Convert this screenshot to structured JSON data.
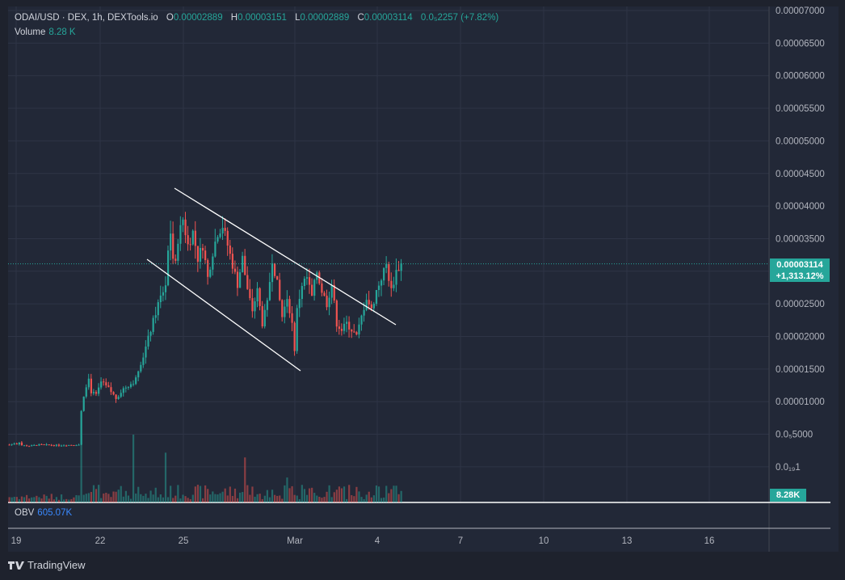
{
  "legend": {
    "symbol": "ODAI/USD · DEX, 1h, DEXTools.io",
    "open_key": "O",
    "open": "0.00002889",
    "high_key": "H",
    "high": "0.00003151",
    "low_key": "L",
    "low": "0.00002889",
    "close_key": "C",
    "close": "0.00003114",
    "change": "0.0₅2257 (+7.82%)"
  },
  "volume": {
    "label": "Volume",
    "value": "8.28 K",
    "axis_badge": "8.28K"
  },
  "obv": {
    "label": "OBV",
    "value": "605.07K"
  },
  "last_price": {
    "value": "0.00003114",
    "change_pct": "+1,313.12%"
  },
  "brand": {
    "name": "TradingView"
  },
  "colors": {
    "up": "#26a69a",
    "down": "#ef5350",
    "background": "#222837",
    "grid": "#2e3446",
    "trendline": "#ffffff"
  },
  "chart_data": {
    "type": "candlestick",
    "interval": "1h",
    "y_axis_ticks": [
      "0.00007000",
      "0.00006500",
      "0.00006000",
      "0.00005500",
      "0.00005000",
      "0.00004500",
      "0.00004000",
      "0.00003500",
      "0.00003000",
      "0.00002500",
      "0.00002000",
      "0.00001500",
      "0.00001000",
      "0.0₅5000",
      "0.0₁₉1"
    ],
    "ylim": [
      0,
      7e-05
    ],
    "x_axis_ticks": [
      "19",
      "22",
      "25",
      "Mar",
      "4",
      "7",
      "10",
      "13",
      "16"
    ],
    "price_path": [
      [
        0,
        3.4e-06
      ],
      [
        2,
        3.6e-06
      ],
      [
        3,
        3.5e-06
      ],
      [
        4,
        3.8e-06
      ],
      [
        5,
        3.3e-06
      ],
      [
        8,
        3.2e-06
      ],
      [
        12,
        3.4e-06
      ],
      [
        20,
        3.3e-06
      ],
      [
        28,
        3.4e-06
      ],
      [
        29,
        8.5e-06
      ],
      [
        30,
        1.1e-05
      ],
      [
        31,
        1.25e-05
      ],
      [
        32,
        1.35e-05
      ],
      [
        33,
        1.15e-05
      ],
      [
        35,
        1.1e-05
      ],
      [
        37,
        1.3e-05
      ],
      [
        40,
        1.2e-05
      ],
      [
        43,
        1.05e-05
      ],
      [
        46,
        1.2e-05
      ],
      [
        50,
        1.3e-05
      ],
      [
        54,
        1.7e-05
      ],
      [
        57,
        2.1e-05
      ],
      [
        60,
        2.5e-05
      ],
      [
        63,
        2.8e-05
      ],
      [
        64,
        3.3e-05
      ],
      [
        65,
        3.6e-05
      ],
      [
        66,
        3.2e-05
      ],
      [
        67,
        3.1e-05
      ],
      [
        68,
        3.5e-05
      ],
      [
        70,
        3.8e-05
      ],
      [
        72,
        3.4e-05
      ],
      [
        74,
        3.6e-05
      ],
      [
        76,
        3.2e-05
      ],
      [
        78,
        3.4e-05
      ],
      [
        80,
        2.9e-05
      ],
      [
        82,
        3.3e-05
      ],
      [
        84,
        3.6e-05
      ],
      [
        86,
        3.7e-05
      ],
      [
        88,
        3.4e-05
      ],
      [
        90,
        3.1e-05
      ],
      [
        92,
        2.8e-05
      ],
      [
        94,
        3.2e-05
      ],
      [
        96,
        2.7e-05
      ],
      [
        98,
        2.4e-05
      ],
      [
        100,
        2.7e-05
      ],
      [
        102,
        2.2e-05
      ],
      [
        104,
        2.5e-05
      ],
      [
        106,
        3.2e-05
      ],
      [
        108,
        2.8e-05
      ],
      [
        110,
        2.3e-05
      ],
      [
        112,
        2.6e-05
      ],
      [
        114,
        2.2e-05
      ],
      [
        115,
        1.8e-05
      ],
      [
        116,
        2.4e-05
      ],
      [
        118,
        2.8e-05
      ],
      [
        120,
        2.9e-05
      ],
      [
        122,
        2.6e-05
      ],
      [
        124,
        3e-05
      ],
      [
        126,
        2.7e-05
      ],
      [
        128,
        2.5e-05
      ],
      [
        130,
        2.8e-05
      ],
      [
        132,
        2.2e-05
      ],
      [
        134,
        2.1e-05
      ],
      [
        136,
        2.2e-05
      ],
      [
        138,
        2.1e-05
      ],
      [
        140,
        2e-05
      ],
      [
        142,
        2.3e-05
      ],
      [
        144,
        2.6e-05
      ],
      [
        146,
        2.4e-05
      ],
      [
        148,
        2.7e-05
      ],
      [
        150,
        2.9e-05
      ],
      [
        152,
        3.1e-05
      ],
      [
        154,
        2.7e-05
      ],
      [
        156,
        3e-05
      ],
      [
        158,
        3.11e-05
      ]
    ]
  }
}
